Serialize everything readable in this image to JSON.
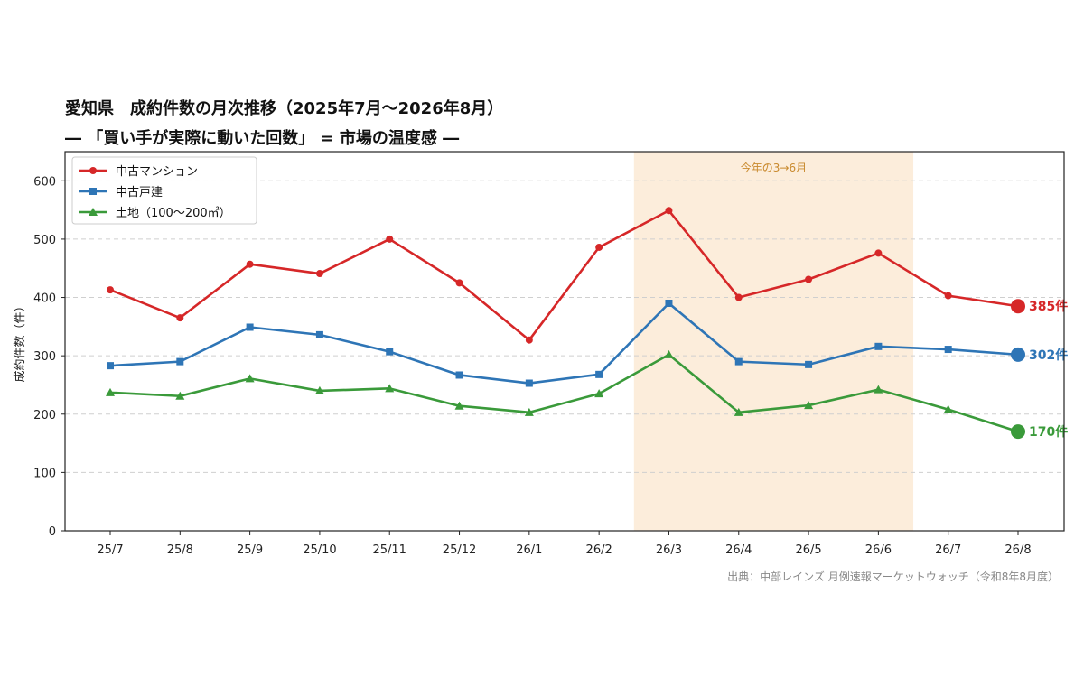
{
  "title": "愛知県　成約件数の月次推移（2025年7月～2026年8月）",
  "subtitle": "― 「買い手が実際に動いた回数」 = 市場の温度感 ―",
  "source": "出典：中部レインズ 月例速報マーケットウォッチ（令和8年8月度）",
  "chart_data": {
    "type": "line",
    "categories": [
      "25/7",
      "25/8",
      "25/9",
      "25/10",
      "25/11",
      "25/12",
      "26/1",
      "26/2",
      "26/3",
      "26/4",
      "26/5",
      "26/6",
      "26/7",
      "26/8"
    ],
    "ylabel": "成約件数（件）",
    "ylim": [
      0,
      650
    ],
    "yticks": [
      0,
      100,
      200,
      300,
      400,
      500,
      600
    ],
    "grid": true,
    "legend_position": "top-left",
    "highlight": {
      "from": "26/3",
      "to": "26/6",
      "label": "今年の3→6月",
      "color": "#fbe7cf"
    },
    "series": [
      {
        "name": "中古マンション",
        "color": "#d62728",
        "marker": "circle",
        "values": [
          413,
          365,
          457,
          441,
          500,
          425,
          327,
          486,
          549,
          400,
          431,
          476,
          403,
          385
        ],
        "end_label": "385件"
      },
      {
        "name": "中古戸建",
        "color": "#2e75b6",
        "marker": "square",
        "values": [
          283,
          290,
          349,
          336,
          307,
          267,
          253,
          268,
          390,
          290,
          285,
          316,
          311,
          302
        ],
        "end_label": "302件"
      },
      {
        "name": "土地（100～200㎡）",
        "color": "#3a9a3a",
        "marker": "triangle",
        "values": [
          237,
          231,
          261,
          240,
          244,
          214,
          203,
          235,
          302,
          203,
          215,
          242,
          208,
          170
        ],
        "end_label": "170件"
      }
    ]
  }
}
